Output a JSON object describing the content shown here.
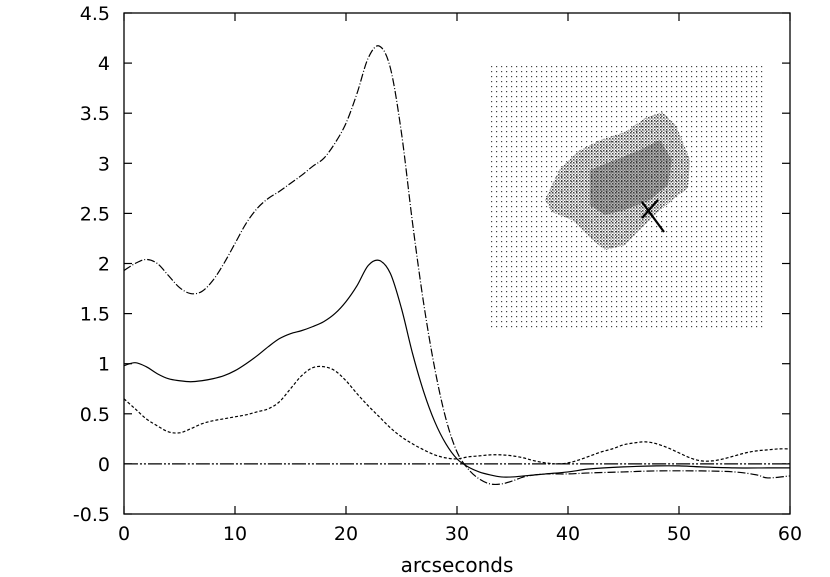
{
  "chart_data": {
    "type": "line",
    "title": "",
    "xlabel": "arcseconds",
    "ylabel": "",
    "xlim": [
      0,
      60
    ],
    "ylim": [
      -0.5,
      4.5
    ],
    "x_ticks": [
      "0",
      "10",
      "20",
      "30",
      "40",
      "50",
      "60"
    ],
    "y_ticks": [
      "-0.5",
      "0",
      "0.5",
      "1",
      "1.5",
      "2",
      "2.5",
      "3",
      "3.5",
      "4",
      "4.5"
    ],
    "grid": false,
    "legend": "none",
    "series": [
      {
        "style": "dash-dot",
        "points": [
          [
            0,
            1.93
          ],
          [
            1,
            2.0
          ],
          [
            2,
            2.04
          ],
          [
            3,
            2.0
          ],
          [
            4,
            1.88
          ],
          [
            5,
            1.76
          ],
          [
            6,
            1.7
          ],
          [
            7,
            1.72
          ],
          [
            8,
            1.83
          ],
          [
            9,
            2.0
          ],
          [
            10,
            2.2
          ],
          [
            11,
            2.4
          ],
          [
            12,
            2.55
          ],
          [
            13,
            2.65
          ],
          [
            14,
            2.72
          ],
          [
            15,
            2.8
          ],
          [
            16,
            2.88
          ],
          [
            17,
            2.97
          ],
          [
            18,
            3.05
          ],
          [
            19,
            3.2
          ],
          [
            20,
            3.4
          ],
          [
            21,
            3.7
          ],
          [
            22,
            4.05
          ],
          [
            23,
            4.17
          ],
          [
            24,
            3.95
          ],
          [
            25,
            3.3
          ],
          [
            26,
            2.4
          ],
          [
            27,
            1.6
          ],
          [
            28,
            0.95
          ],
          [
            29,
            0.45
          ],
          [
            30,
            0.12
          ],
          [
            31,
            -0.05
          ],
          [
            32,
            -0.15
          ],
          [
            33,
            -0.2
          ],
          [
            34,
            -0.2
          ],
          [
            35,
            -0.17
          ],
          [
            36,
            -0.13
          ],
          [
            37,
            -0.11
          ],
          [
            38,
            -0.1
          ],
          [
            40,
            -0.1
          ],
          [
            42,
            -0.09
          ],
          [
            45,
            -0.08
          ],
          [
            48,
            -0.07
          ],
          [
            52,
            -0.07
          ],
          [
            55,
            -0.08
          ],
          [
            57,
            -0.11
          ],
          [
            58,
            -0.14
          ],
          [
            60,
            -0.12
          ]
        ]
      },
      {
        "style": "solid",
        "points": [
          [
            0,
            0.98
          ],
          [
            1,
            1.01
          ],
          [
            2,
            0.97
          ],
          [
            3,
            0.9
          ],
          [
            4,
            0.85
          ],
          [
            5,
            0.83
          ],
          [
            6,
            0.82
          ],
          [
            7,
            0.83
          ],
          [
            8,
            0.85
          ],
          [
            9,
            0.88
          ],
          [
            10,
            0.93
          ],
          [
            11,
            1.0
          ],
          [
            12,
            1.08
          ],
          [
            13,
            1.17
          ],
          [
            14,
            1.25
          ],
          [
            15,
            1.3
          ],
          [
            16,
            1.33
          ],
          [
            17,
            1.37
          ],
          [
            18,
            1.42
          ],
          [
            19,
            1.5
          ],
          [
            20,
            1.62
          ],
          [
            21,
            1.78
          ],
          [
            22,
            1.98
          ],
          [
            23,
            2.03
          ],
          [
            24,
            1.9
          ],
          [
            25,
            1.55
          ],
          [
            26,
            1.1
          ],
          [
            27,
            0.72
          ],
          [
            28,
            0.42
          ],
          [
            29,
            0.2
          ],
          [
            30,
            0.05
          ],
          [
            31,
            -0.03
          ],
          [
            32,
            -0.08
          ],
          [
            33,
            -0.11
          ],
          [
            34,
            -0.13
          ],
          [
            35,
            -0.13
          ],
          [
            36,
            -0.12
          ],
          [
            38,
            -0.1
          ],
          [
            40,
            -0.08
          ],
          [
            42,
            -0.05
          ],
          [
            45,
            -0.03
          ],
          [
            48,
            -0.02
          ],
          [
            50,
            -0.02
          ],
          [
            52,
            -0.03
          ],
          [
            55,
            -0.04
          ],
          [
            58,
            -0.04
          ],
          [
            60,
            -0.04
          ]
        ]
      },
      {
        "style": "dashed",
        "points": [
          [
            0,
            0.65
          ],
          [
            1,
            0.55
          ],
          [
            2,
            0.45
          ],
          [
            3,
            0.38
          ],
          [
            4,
            0.32
          ],
          [
            5,
            0.31
          ],
          [
            6,
            0.35
          ],
          [
            7,
            0.4
          ],
          [
            8,
            0.43
          ],
          [
            9,
            0.45
          ],
          [
            10,
            0.47
          ],
          [
            11,
            0.49
          ],
          [
            12,
            0.52
          ],
          [
            13,
            0.55
          ],
          [
            14,
            0.62
          ],
          [
            15,
            0.75
          ],
          [
            16,
            0.88
          ],
          [
            17,
            0.96
          ],
          [
            18,
            0.97
          ],
          [
            19,
            0.93
          ],
          [
            20,
            0.83
          ],
          [
            21,
            0.7
          ],
          [
            22,
            0.58
          ],
          [
            23,
            0.47
          ],
          [
            24,
            0.36
          ],
          [
            25,
            0.27
          ],
          [
            26,
            0.2
          ],
          [
            27,
            0.14
          ],
          [
            28,
            0.09
          ],
          [
            29,
            0.06
          ],
          [
            30,
            0.05
          ],
          [
            31,
            0.07
          ],
          [
            32,
            0.08
          ],
          [
            33,
            0.09
          ],
          [
            34,
            0.09
          ],
          [
            35,
            0.08
          ],
          [
            36,
            0.06
          ],
          [
            37,
            0.03
          ],
          [
            38,
            0.01
          ],
          [
            39,
            0.0
          ],
          [
            40,
            0.01
          ],
          [
            41,
            0.04
          ],
          [
            42,
            0.08
          ],
          [
            43,
            0.12
          ],
          [
            44,
            0.15
          ],
          [
            45,
            0.19
          ],
          [
            46,
            0.21
          ],
          [
            47,
            0.22
          ],
          [
            48,
            0.2
          ],
          [
            49,
            0.16
          ],
          [
            50,
            0.11
          ],
          [
            51,
            0.06
          ],
          [
            52,
            0.03
          ],
          [
            53,
            0.03
          ],
          [
            54,
            0.05
          ],
          [
            55,
            0.08
          ],
          [
            56,
            0.11
          ],
          [
            57,
            0.13
          ],
          [
            58,
            0.14
          ],
          [
            59,
            0.15
          ],
          [
            60,
            0.15
          ]
        ]
      },
      {
        "style": "dash-dot-dot",
        "points": [
          [
            0,
            0.0
          ],
          [
            60,
            0.0
          ]
        ]
      }
    ],
    "inset": {
      "description_visible": false,
      "cross_marker": true
    }
  }
}
